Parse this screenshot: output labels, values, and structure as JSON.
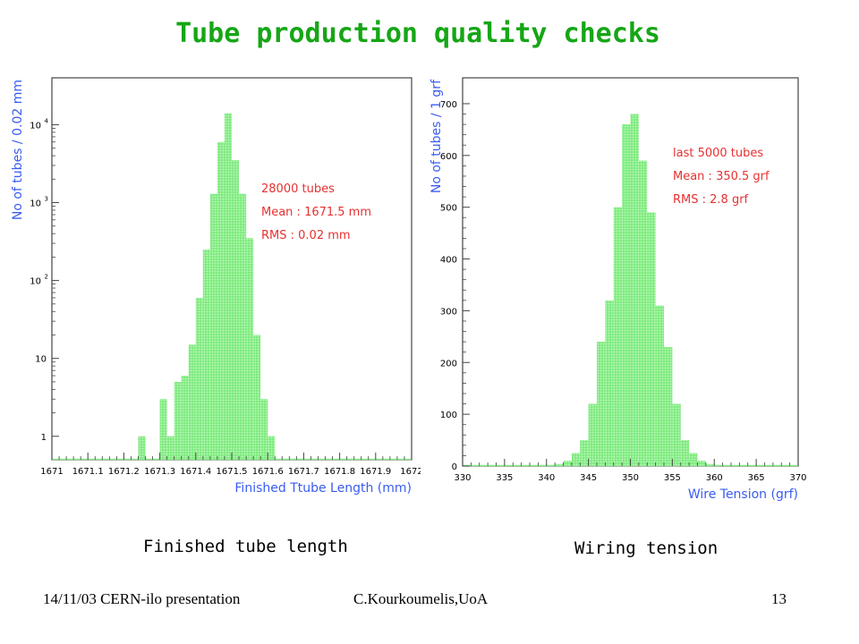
{
  "slide": {
    "title": "Tube production quality checks",
    "caption_left": "Finished tube length",
    "caption_right": "Wiring tension",
    "footer_left": "14/11/03 CERN-ilo presentation",
    "footer_center": "C.Kourkoumelis,UoA",
    "page_number": "13"
  },
  "colors": {
    "title": "#16a616",
    "bar_fill": "#8ff08f",
    "axis_label": "#3a5cf0",
    "annotation": "#e83030"
  },
  "chart_data": [
    {
      "type": "bar",
      "title": "",
      "xlabel": "Finished Ttube Length (mm)",
      "ylabel": "No of tubes / 0.02 mm",
      "y_scale": "log",
      "xlim": [
        1671,
        1672
      ],
      "ylim": [
        0.5,
        40000
      ],
      "x_ticks": [
        1671,
        1671.1,
        1671.2,
        1671.3,
        1671.4,
        1671.5,
        1671.6,
        1671.7,
        1671.8,
        1671.9,
        1672
      ],
      "x_tick_labels": [
        "1671",
        "1671.1",
        "1671.2",
        "1671.3",
        "1671.4",
        "1671.5",
        "1671.6",
        "1671.7",
        "1671.8",
        "1671.9",
        "1672"
      ],
      "y_ticks": [
        1,
        10,
        100,
        1000,
        10000
      ],
      "y_tick_labels": [
        {
          "base": "1",
          "exp": ""
        },
        {
          "base": "10",
          "exp": ""
        },
        {
          "base": "10",
          "exp": "2"
        },
        {
          "base": "10",
          "exp": "3"
        },
        {
          "base": "10",
          "exp": "4"
        }
      ],
      "bin_width": 0.02,
      "bins": [
        {
          "x": 1671.24,
          "y": 1
        },
        {
          "x": 1671.3,
          "y": 3
        },
        {
          "x": 1671.32,
          "y": 1
        },
        {
          "x": 1671.34,
          "y": 5
        },
        {
          "x": 1671.36,
          "y": 6
        },
        {
          "x": 1671.38,
          "y": 15
        },
        {
          "x": 1671.4,
          "y": 60
        },
        {
          "x": 1671.42,
          "y": 250
        },
        {
          "x": 1671.44,
          "y": 1300
        },
        {
          "x": 1671.46,
          "y": 6000
        },
        {
          "x": 1671.48,
          "y": 14000
        },
        {
          "x": 1671.5,
          "y": 3500
        },
        {
          "x": 1671.52,
          "y": 1300
        },
        {
          "x": 1671.54,
          "y": 350
        },
        {
          "x": 1671.56,
          "y": 20
        },
        {
          "x": 1671.58,
          "y": 3
        },
        {
          "x": 1671.6,
          "y": 1
        }
      ],
      "annotations": [
        "28000 tubes",
        "Mean : 1671.5 mm",
        "RMS : 0.02 mm"
      ]
    },
    {
      "type": "bar",
      "title": "",
      "xlabel": "Wire Tension (grf)",
      "ylabel": "No of tubes / 1 grf",
      "y_scale": "linear",
      "xlim": [
        330,
        370
      ],
      "ylim": [
        0,
        750
      ],
      "x_ticks": [
        330,
        335,
        340,
        345,
        350,
        355,
        360,
        365,
        370
      ],
      "x_tick_labels": [
        "330",
        "335",
        "340",
        "345",
        "350",
        "355",
        "360",
        "365",
        "370"
      ],
      "y_ticks": [
        0,
        100,
        200,
        300,
        400,
        500,
        600,
        700
      ],
      "y_tick_labels": [
        "0",
        "100",
        "200",
        "300",
        "400",
        "500",
        "600",
        "700"
      ],
      "bin_width": 1,
      "bins": [
        {
          "x": 332,
          "y": 1
        },
        {
          "x": 333,
          "y": 1
        },
        {
          "x": 334,
          "y": 1
        },
        {
          "x": 335,
          "y": 1
        },
        {
          "x": 336,
          "y": 1
        },
        {
          "x": 337,
          "y": 1
        },
        {
          "x": 338,
          "y": 1
        },
        {
          "x": 339,
          "y": 2
        },
        {
          "x": 340,
          "y": 2
        },
        {
          "x": 341,
          "y": 4
        },
        {
          "x": 342,
          "y": 10
        },
        {
          "x": 343,
          "y": 25
        },
        {
          "x": 344,
          "y": 50
        },
        {
          "x": 345,
          "y": 120
        },
        {
          "x": 346,
          "y": 240
        },
        {
          "x": 347,
          "y": 320
        },
        {
          "x": 348,
          "y": 500
        },
        {
          "x": 349,
          "y": 660
        },
        {
          "x": 350,
          "y": 680
        },
        {
          "x": 351,
          "y": 590
        },
        {
          "x": 352,
          "y": 490
        },
        {
          "x": 353,
          "y": 310
        },
        {
          "x": 354,
          "y": 230
        },
        {
          "x": 355,
          "y": 120
        },
        {
          "x": 356,
          "y": 50
        },
        {
          "x": 357,
          "y": 25
        },
        {
          "x": 358,
          "y": 10
        },
        {
          "x": 359,
          "y": 4
        },
        {
          "x": 360,
          "y": 2
        },
        {
          "x": 361,
          "y": 1
        }
      ],
      "annotations": [
        "last 5000 tubes",
        "Mean : 350.5 grf",
        "RMS : 2.8 grf"
      ]
    }
  ]
}
